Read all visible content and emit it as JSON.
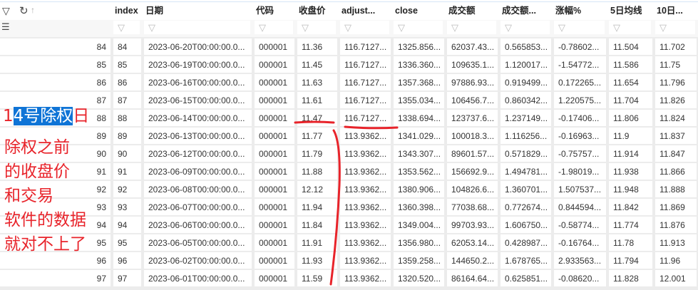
{
  "toolbar": {
    "filter_icon": "filter-icon",
    "refresh_icon": "refresh-icon",
    "sort_icon": "arrow-up-icon",
    "clear_filter_icon": "clear-filter-icon"
  },
  "columns": [
    "index",
    "日期",
    "代码",
    "收盘价",
    "adjust...",
    "close",
    "成交额",
    "成交额...",
    "涨幅%",
    "5日均线",
    "10日..."
  ],
  "rows": [
    [
      "84",
      "84",
      "2023-06-20T00:00:00.0...",
      "000001",
      "11.36",
      "116.7127...",
      "1325.856...",
      "62037.43...",
      "0.565853...",
      "-0.78602...",
      "11.504",
      "11.702"
    ],
    [
      "85",
      "85",
      "2023-06-19T00:00:00.0...",
      "000001",
      "11.45",
      "116.7127...",
      "1336.360...",
      "109635.1...",
      "1.120017...",
      "-1.54772...",
      "11.586",
      "11.75"
    ],
    [
      "86",
      "86",
      "2023-06-16T00:00:00.0...",
      "000001",
      "11.63",
      "116.7127...",
      "1357.368...",
      "97886.93...",
      "0.919499...",
      "0.172265...",
      "11.654",
      "11.796"
    ],
    [
      "87",
      "87",
      "2023-06-15T00:00:00.0...",
      "000001",
      "11.61",
      "116.7127...",
      "1355.034...",
      "106456.7...",
      "0.860342...",
      "1.220575...",
      "11.704",
      "11.826"
    ],
    [
      "88",
      "88",
      "2023-06-14T00:00:00.0...",
      "000001",
      "11.47",
      "116.7127...",
      "1338.694...",
      "123737.6...",
      "1.237149...",
      "-0.17406...",
      "11.806",
      "11.824"
    ],
    [
      "89",
      "89",
      "2023-06-13T00:00:00.0...",
      "000001",
      "11.77",
      "113.9362...",
      "1341.029...",
      "100018.3...",
      "1.116256...",
      "-0.16963...",
      "11.9",
      "11.837"
    ],
    [
      "90",
      "90",
      "2023-06-12T00:00:00.0...",
      "000001",
      "11.79",
      "113.9362...",
      "1343.307...",
      "89601.57...",
      "0.571829...",
      "-0.75757...",
      "11.914",
      "11.847"
    ],
    [
      "91",
      "91",
      "2023-06-09T00:00:00.0...",
      "000001",
      "11.88",
      "113.9362...",
      "1353.562...",
      "156692.9...",
      "1.494781...",
      "-1.98019...",
      "11.938",
      "11.866"
    ],
    [
      "92",
      "92",
      "2023-06-08T00:00:00.0...",
      "000001",
      "12.12",
      "113.9362...",
      "1380.906...",
      "104826.6...",
      "1.360701...",
      "1.507537...",
      "11.948",
      "11.888"
    ],
    [
      "93",
      "93",
      "2023-06-07T00:00:00.0...",
      "000001",
      "11.94",
      "113.9362...",
      "1360.398...",
      "77038.68...",
      "0.772674...",
      "0.844594...",
      "11.842",
      "11.869"
    ],
    [
      "94",
      "94",
      "2023-06-06T00:00:00.0...",
      "000001",
      "11.84",
      "113.9362...",
      "1349.004...",
      "99703.93...",
      "1.606750...",
      "-0.58774...",
      "11.774",
      "11.876"
    ],
    [
      "95",
      "95",
      "2023-06-05T00:00:00.0...",
      "000001",
      "11.91",
      "113.9362...",
      "1356.980...",
      "62053.14...",
      "0.428987...",
      "-0.16764...",
      "11.78",
      "11.913"
    ],
    [
      "96",
      "96",
      "2023-06-02T00:00:00.0...",
      "000001",
      "11.93",
      "113.9362...",
      "1359.258...",
      "144650.2...",
      "1.678765...",
      "2.933563...",
      "11.794",
      "11.96"
    ],
    [
      "97",
      "97",
      "2023-06-01T00:00:00.0...",
      "000001",
      "11.59",
      "113.9362...",
      "1320.520...",
      "86164.64...",
      "0.625851...",
      "-0.08620...",
      "11.828",
      "12.001"
    ]
  ],
  "annotation": {
    "title_pre": "1",
    "title_highlight": "4号除权",
    "title_post": "日",
    "lines": [
      "除权之前",
      "的收盘价",
      "和交易",
      "软件的数据",
      "就对不上了"
    ],
    "color": "#e8232a",
    "highlight_color": "#0f74d6"
  }
}
